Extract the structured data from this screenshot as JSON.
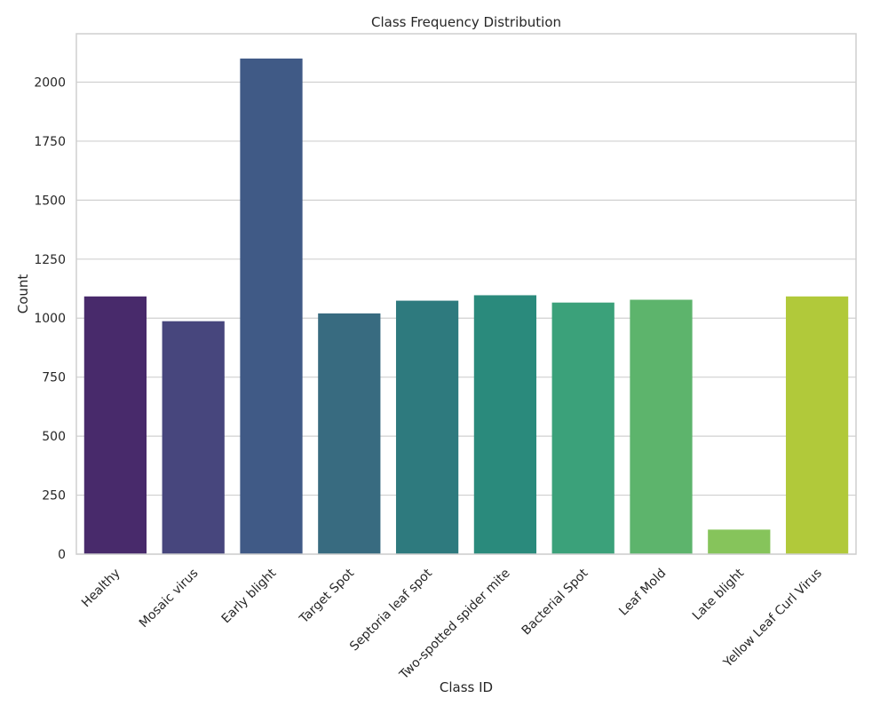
{
  "chart_data": {
    "type": "bar",
    "title": "Class Frequency Distribution",
    "xlabel": "Class ID",
    "ylabel": "Count",
    "categories": [
      "Healthy",
      "Mosaic virus",
      "Early blight",
      "Target Spot",
      "Septoria leaf spot",
      "Two-spotted spider mite",
      "Bacterial Spot",
      "Leaf Mold",
      "Late blight",
      "Yellow Leaf Curl Virus"
    ],
    "values": [
      1092,
      987,
      2100,
      1020,
      1074,
      1097,
      1066,
      1078,
      104,
      1092
    ],
    "colors": [
      "#482a6b",
      "#47467d",
      "#405a86",
      "#386b80",
      "#2e7a7e",
      "#2a8a7c",
      "#3ba17a",
      "#5db46c",
      "#86c45b",
      "#b1c93a"
    ],
    "yticks": [
      0,
      250,
      500,
      750,
      1000,
      1250,
      1500,
      1750,
      2000
    ],
    "ylim": [
      0,
      2205
    ],
    "grid": true,
    "legend": "none"
  }
}
